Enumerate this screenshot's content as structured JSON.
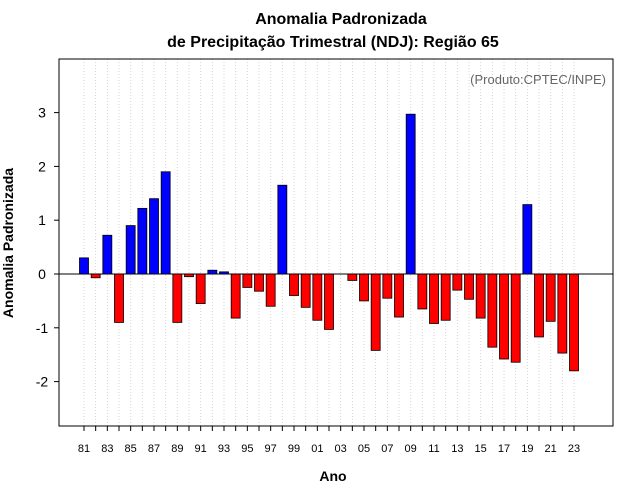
{
  "chart_data": {
    "type": "bar",
    "title": "Anomalia Padronizada",
    "subtitle": "de Precipitação Trimestral (NDJ): Região 65",
    "xlabel": "Ano",
    "ylabel": "Anomalia Padronizada",
    "annotation": "(Produto:CPTEC/INPE)",
    "ylim": [
      -2.85,
      4.0
    ],
    "yticks": [
      -2,
      -1,
      0,
      1,
      2,
      3
    ],
    "grid": "vertical-dotted",
    "colors": {
      "positive": "#0000ff",
      "negative": "#ff0000",
      "zero_line": "#000000",
      "grid": "#cccccc"
    },
    "categories": [
      "81",
      "82",
      "83",
      "84",
      "85",
      "86",
      "87",
      "88",
      "89",
      "90",
      "91",
      "92",
      "93",
      "94",
      "95",
      "96",
      "97",
      "98",
      "99",
      "00",
      "01",
      "02",
      "03",
      "04",
      "05",
      "06",
      "07",
      "08",
      "09",
      "10",
      "11",
      "12",
      "13",
      "14",
      "15",
      "16",
      "17",
      "18",
      "19",
      "20",
      "21",
      "22",
      "23"
    ],
    "xtick_labels": [
      "81",
      "83",
      "85",
      "87",
      "89",
      "91",
      "93",
      "95",
      "97",
      "99",
      "01",
      "03",
      "05",
      "07",
      "09",
      "11",
      "13",
      "15",
      "17",
      "19",
      "21",
      "23"
    ],
    "values": [
      0.3,
      -0.07,
      0.72,
      -0.9,
      0.9,
      1.22,
      1.4,
      1.9,
      -0.9,
      -0.05,
      -0.55,
      0.07,
      0.04,
      -0.82,
      -0.25,
      -0.32,
      -0.6,
      1.65,
      -0.4,
      -0.62,
      -0.86,
      -1.03,
      0.0,
      -0.12,
      -0.5,
      -1.42,
      -0.45,
      -0.8,
      2.97,
      -0.65,
      -0.92,
      -0.86,
      -0.3,
      -0.47,
      -0.82,
      -1.36,
      -1.58,
      -1.64,
      1.29,
      -1.17,
      -0.88,
      -1.47,
      -1.8
    ]
  }
}
